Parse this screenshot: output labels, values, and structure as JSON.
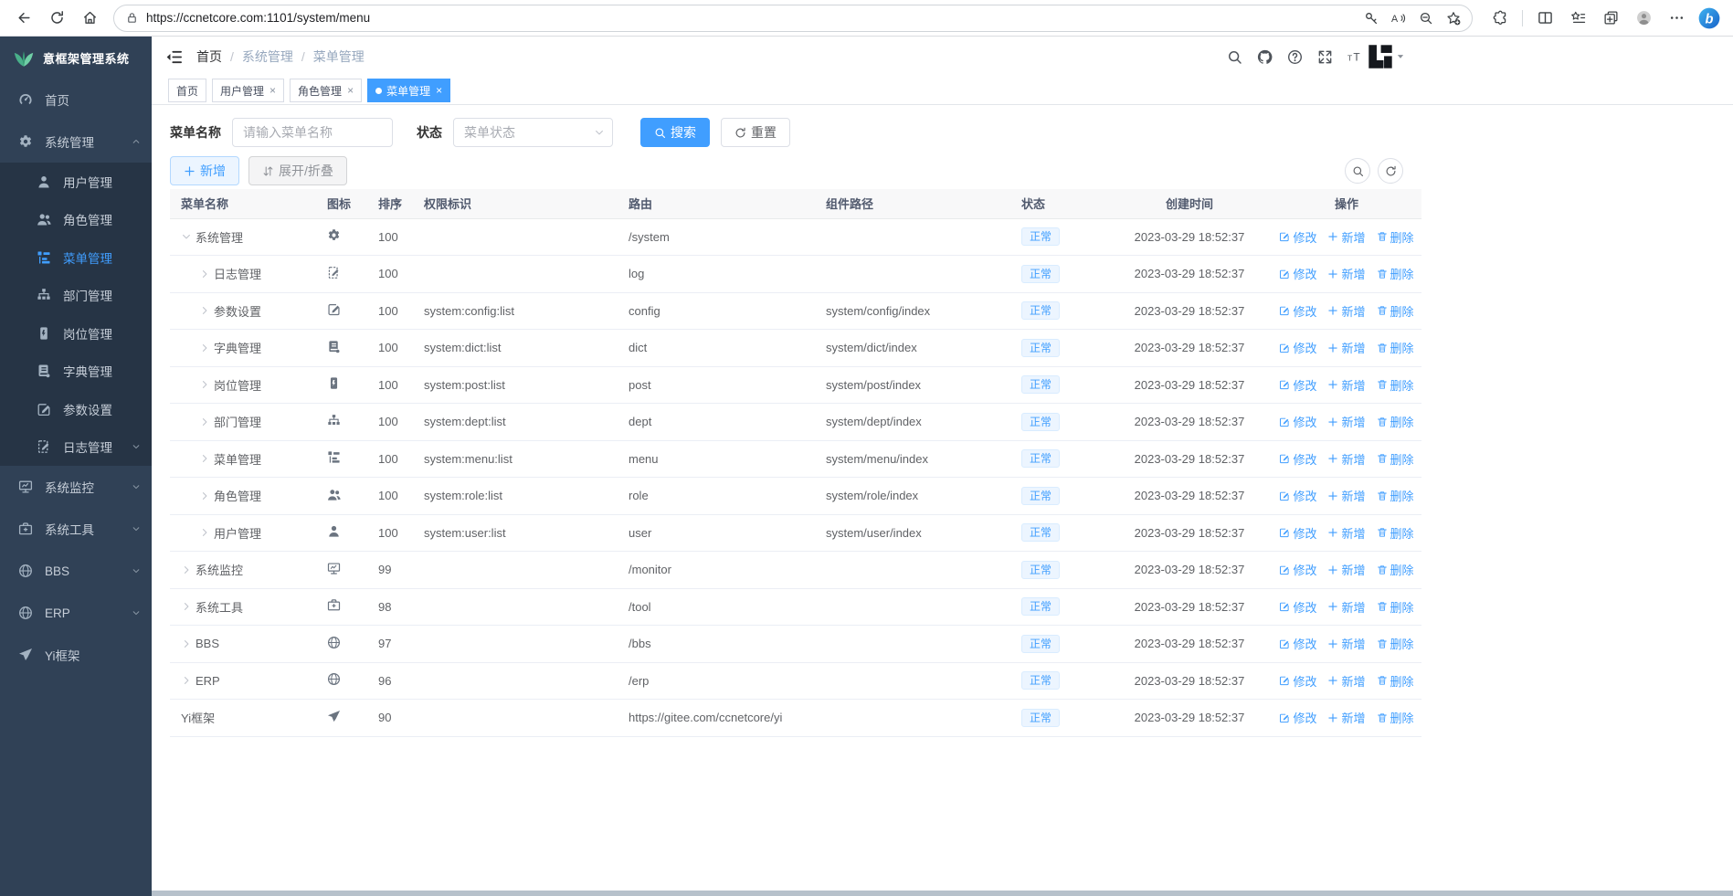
{
  "browser": {
    "url": "https://ccnetcore.com:1101/system/menu",
    "left_tools": [
      "back-icon",
      "reload-icon",
      "home-icon"
    ],
    "url_tools": [
      "key-icon",
      "read-aloud-icon",
      "zoom-out-icon",
      "favorite-add-icon"
    ],
    "right_tools": [
      "extensions-icon",
      "split-screen-icon",
      "favorites-bar-icon",
      "collections-icon",
      "profile-avatar-icon",
      "more-icon",
      "bing-icon"
    ]
  },
  "sidebar": {
    "logo_text": "意框架管理系统",
    "items": [
      {
        "key": "home",
        "label": "首页",
        "icon": "dashboard-icon"
      },
      {
        "key": "system",
        "label": "系统管理",
        "icon": "gear-icon",
        "arrow": "up",
        "expanded": true,
        "children": [
          {
            "key": "user",
            "label": "用户管理",
            "icon": "user-icon"
          },
          {
            "key": "role",
            "label": "角色管理",
            "icon": "users-icon"
          },
          {
            "key": "menu",
            "label": "菜单管理",
            "icon": "menu-tree-icon",
            "active": true
          },
          {
            "key": "dept",
            "label": "部门管理",
            "icon": "org-tree-icon"
          },
          {
            "key": "post",
            "label": "岗位管理",
            "icon": "badge-icon"
          },
          {
            "key": "dict",
            "label": "字典管理",
            "icon": "book-icon"
          },
          {
            "key": "config",
            "label": "参数设置",
            "icon": "edit-icon"
          },
          {
            "key": "log",
            "label": "日志管理",
            "icon": "log-icon",
            "arrow": "down"
          }
        ]
      },
      {
        "key": "monitor",
        "label": "系统监控",
        "icon": "monitor-icon",
        "arrow": "down"
      },
      {
        "key": "tool",
        "label": "系统工具",
        "icon": "toolbox-icon",
        "arrow": "down"
      },
      {
        "key": "bbs",
        "label": "BBS",
        "icon": "globe-icon",
        "arrow": "down"
      },
      {
        "key": "erp",
        "label": "ERP",
        "icon": "globe-icon",
        "arrow": "down"
      },
      {
        "key": "yi",
        "label": "Yi框架",
        "icon": "send-icon"
      }
    ]
  },
  "header": {
    "breadcrumb": [
      "首页",
      "系统管理",
      "菜单管理"
    ],
    "tools": [
      "search-icon",
      "github-icon",
      "question-icon",
      "fullscreen-icon",
      "font-size-icon"
    ]
  },
  "tabs": [
    {
      "key": "home",
      "label": "首页",
      "closable": false,
      "active": false
    },
    {
      "key": "user",
      "label": "用户管理",
      "closable": true,
      "active": false
    },
    {
      "key": "role",
      "label": "角色管理",
      "closable": true,
      "active": false
    },
    {
      "key": "menu",
      "label": "菜单管理",
      "closable": true,
      "active": true
    }
  ],
  "filter": {
    "name_label": "菜单名称",
    "name_placeholder": "请输入菜单名称",
    "status_label": "状态",
    "status_placeholder": "菜单状态",
    "search_label": "搜索",
    "reset_label": "重置"
  },
  "toolbar": {
    "add_label": "新增",
    "expand_label": "展开/折叠"
  },
  "table": {
    "columns": [
      "菜单名称",
      "图标",
      "排序",
      "权限标识",
      "路由",
      "组件路径",
      "状态",
      "创建时间",
      "操作"
    ],
    "actions": {
      "edit": "修改",
      "add": "新增",
      "delete": "删除"
    },
    "rows": [
      {
        "name": "系统管理",
        "icon": "gear-icon",
        "level": 0,
        "expand": "open",
        "order": "100",
        "perm": "",
        "route": "/system",
        "component": "",
        "status": "正常",
        "created": "2023-03-29 18:52:37"
      },
      {
        "name": "日志管理",
        "icon": "log-icon",
        "level": 1,
        "expand": "closed",
        "order": "100",
        "perm": "",
        "route": "log",
        "component": "",
        "status": "正常",
        "created": "2023-03-29 18:52:37"
      },
      {
        "name": "参数设置",
        "icon": "edit-icon",
        "level": 1,
        "expand": "closed",
        "order": "100",
        "perm": "system:config:list",
        "route": "config",
        "component": "system/config/index",
        "status": "正常",
        "created": "2023-03-29 18:52:37"
      },
      {
        "name": "字典管理",
        "icon": "book-icon",
        "level": 1,
        "expand": "closed",
        "order": "100",
        "perm": "system:dict:list",
        "route": "dict",
        "component": "system/dict/index",
        "status": "正常",
        "created": "2023-03-29 18:52:37"
      },
      {
        "name": "岗位管理",
        "icon": "badge-icon",
        "level": 1,
        "expand": "closed",
        "order": "100",
        "perm": "system:post:list",
        "route": "post",
        "component": "system/post/index",
        "status": "正常",
        "created": "2023-03-29 18:52:37"
      },
      {
        "name": "部门管理",
        "icon": "org-tree-icon",
        "level": 1,
        "expand": "closed",
        "order": "100",
        "perm": "system:dept:list",
        "route": "dept",
        "component": "system/dept/index",
        "status": "正常",
        "created": "2023-03-29 18:52:37"
      },
      {
        "name": "菜单管理",
        "icon": "menu-tree-icon",
        "level": 1,
        "expand": "closed",
        "order": "100",
        "perm": "system:menu:list",
        "route": "menu",
        "component": "system/menu/index",
        "status": "正常",
        "created": "2023-03-29 18:52:37"
      },
      {
        "name": "角色管理",
        "icon": "users-icon",
        "level": 1,
        "expand": "closed",
        "order": "100",
        "perm": "system:role:list",
        "route": "role",
        "component": "system/role/index",
        "status": "正常",
        "created": "2023-03-29 18:52:37"
      },
      {
        "name": "用户管理",
        "icon": "user-icon",
        "level": 1,
        "expand": "closed",
        "order": "100",
        "perm": "system:user:list",
        "route": "user",
        "component": "system/user/index",
        "status": "正常",
        "created": "2023-03-29 18:52:37"
      },
      {
        "name": "系统监控",
        "icon": "monitor-icon",
        "level": 0,
        "expand": "closed",
        "order": "99",
        "perm": "",
        "route": "/monitor",
        "component": "",
        "status": "正常",
        "created": "2023-03-29 18:52:37"
      },
      {
        "name": "系统工具",
        "icon": "toolbox-icon",
        "level": 0,
        "expand": "closed",
        "order": "98",
        "perm": "",
        "route": "/tool",
        "component": "",
        "status": "正常",
        "created": "2023-03-29 18:52:37"
      },
      {
        "name": "BBS",
        "icon": "globe-icon",
        "level": 0,
        "expand": "closed",
        "order": "97",
        "perm": "",
        "route": "/bbs",
        "component": "",
        "status": "正常",
        "created": "2023-03-29 18:52:37"
      },
      {
        "name": "ERP",
        "icon": "globe-icon",
        "level": 0,
        "expand": "closed",
        "order": "96",
        "perm": "",
        "route": "/erp",
        "component": "",
        "status": "正常",
        "created": "2023-03-29 18:52:37"
      },
      {
        "name": "Yi框架",
        "icon": "send-icon",
        "level": 0,
        "expand": "none",
        "order": "90",
        "perm": "",
        "route": "https://gitee.com/ccnetcore/yi",
        "component": "",
        "status": "正常",
        "created": "2023-03-29 18:52:37"
      }
    ]
  },
  "colors": {
    "accent": "#409eff",
    "sidebar_bg": "#304156",
    "submenu_bg": "#263445",
    "status_bg": "#ecf5ff",
    "status_text": "#409eff"
  }
}
